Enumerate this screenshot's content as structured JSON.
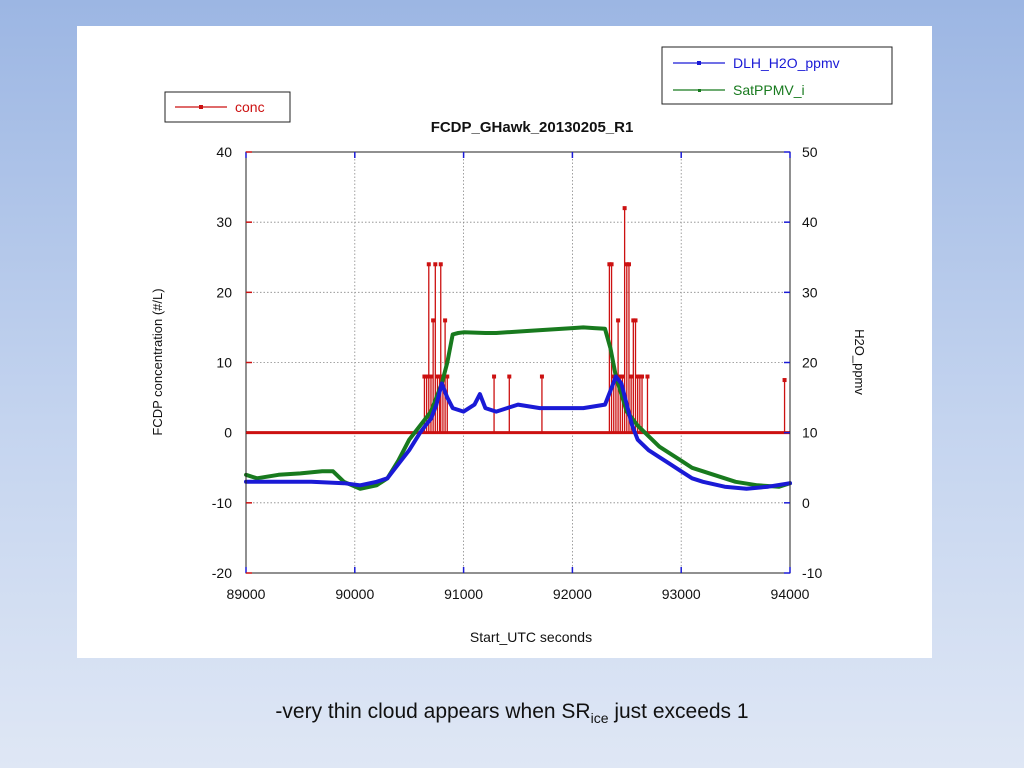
{
  "caption": {
    "before": "-very thin cloud appears when SR",
    "sub": "ice",
    "after": " just exceeds 1"
  },
  "chart_data": {
    "type": "line",
    "title": "FCDP_GHawk_20130205_R1",
    "xlabel": "Start_UTC seconds",
    "ylabel_left": "FCDP concentration (#/L)",
    "ylabel_right": "H2O_ppmv",
    "xlim": [
      89000,
      94000
    ],
    "ylim_left": [
      -20,
      40
    ],
    "ylim_right": [
      -10,
      50
    ],
    "x_ticks": [
      "89000",
      "90000",
      "91000",
      "92000",
      "93000",
      "94000"
    ],
    "y_ticks_left": [
      "-20",
      "-10",
      "0",
      "10",
      "20",
      "30",
      "40"
    ],
    "y_ticks_right": [
      "-10",
      "0",
      "10",
      "20",
      "30",
      "40",
      "50"
    ],
    "grid": true,
    "legend_left": {
      "placement": "top-left",
      "entries": [
        "conc"
      ]
    },
    "legend_right": {
      "placement": "top-right",
      "entries": [
        "DLH_H2O_ppmv",
        "SatPPMV_i"
      ]
    },
    "colors": {
      "conc": "#cc1111",
      "DLH_H2O_ppmv": "#1a1ad6",
      "SatPPMV_i": "#187a1e"
    },
    "series": [
      {
        "name": "conc",
        "axis": "left",
        "style": "impulse",
        "x": [
          89000,
          90640,
          90660,
          90680,
          90700,
          90720,
          90740,
          90760,
          90780,
          90790,
          90810,
          90830,
          90850,
          91280,
          91420,
          91720,
          92340,
          92360,
          92380,
          92400,
          92420,
          92440,
          92460,
          92480,
          92500,
          92520,
          92540,
          92560,
          92580,
          92600,
          92620,
          92640,
          92690,
          93950
        ],
        "y": [
          0,
          8,
          8,
          24,
          8,
          16,
          24,
          8,
          8,
          24,
          8,
          16,
          8,
          8,
          8,
          8,
          24,
          24,
          8,
          8,
          16,
          8,
          8,
          32,
          24,
          24,
          8,
          16,
          16,
          8,
          8,
          8,
          8,
          7.5
        ]
      },
      {
        "name": "DLH_H2O_ppmv",
        "axis": "right",
        "x": [
          89000,
          89300,
          89600,
          89900,
          90050,
          90200,
          90300,
          90400,
          90500,
          90600,
          90650,
          90700,
          90750,
          90800,
          90850,
          90900,
          91000,
          91100,
          91150,
          91200,
          91300,
          91400,
          91500,
          91700,
          91900,
          92100,
          92300,
          92350,
          92400,
          92450,
          92500,
          92550,
          92600,
          92700,
          92800,
          92900,
          93000,
          93100,
          93200,
          93400,
          93600,
          93800,
          94000
        ],
        "y": [
          3,
          3,
          3,
          2.8,
          2.5,
          3,
          3.5,
          5.5,
          7.5,
          10,
          11,
          12,
          14,
          17,
          15,
          13.5,
          13,
          14,
          15.5,
          13.5,
          13,
          13.5,
          14,
          13.5,
          13.5,
          13.5,
          14,
          16,
          18,
          17,
          14,
          11,
          9,
          7.5,
          6.5,
          5.5,
          4.5,
          3.5,
          3,
          2.3,
          2,
          2.3,
          2.8
        ]
      },
      {
        "name": "SatPPMV_i",
        "axis": "right",
        "x": [
          89000,
          89100,
          89300,
          89500,
          89700,
          89800,
          89900,
          90050,
          90200,
          90300,
          90400,
          90500,
          90600,
          90700,
          90800,
          90850,
          90900,
          90950,
          91000,
          91200,
          91300,
          91400,
          91600,
          91800,
          92000,
          92100,
          92200,
          92300,
          92350,
          92400,
          92500,
          92600,
          92700,
          92800,
          92900,
          93000,
          93100,
          93200,
          93300,
          93500,
          93700,
          93900,
          94000
        ],
        "y": [
          4,
          3.5,
          4,
          4.2,
          4.5,
          4.5,
          3,
          2,
          2.5,
          3.5,
          6,
          9,
          11,
          13,
          17,
          20,
          24,
          24.2,
          24.3,
          24.2,
          24.2,
          24.3,
          24.5,
          24.7,
          24.9,
          25,
          24.9,
          24.8,
          22,
          18,
          13,
          11,
          9.5,
          8,
          7,
          6,
          5,
          4.5,
          4,
          3,
          2.5,
          2.3,
          2.8
        ]
      }
    ]
  }
}
